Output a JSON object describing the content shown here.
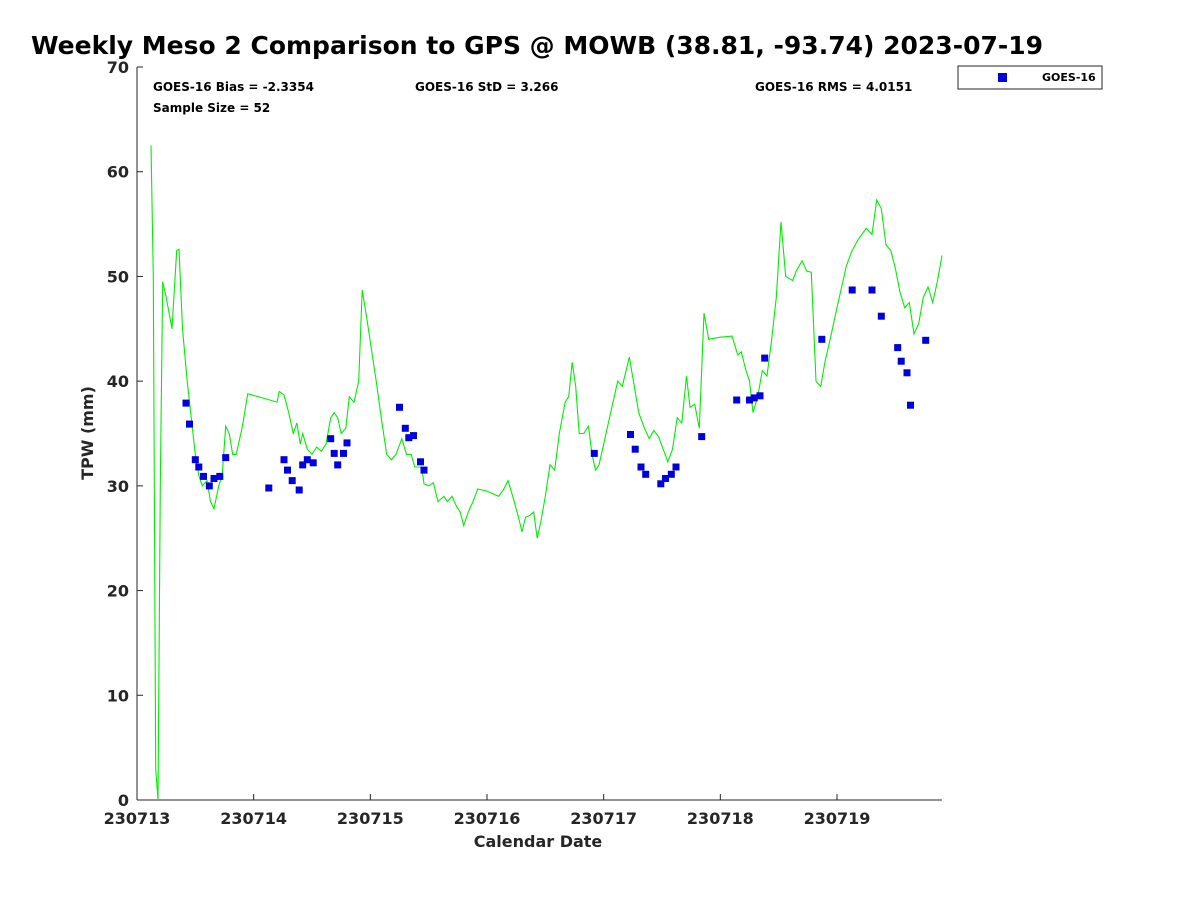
{
  "chart_data": {
    "type": "scatter",
    "title": "Weekly Meso 2 Comparison to GPS @ MOWB (38.81, -93.74) 2023-07-19",
    "xlabel": "Calendar Date",
    "ylabel": "TPW (mm)",
    "x_unit": "days",
    "xlim": [
      13.0,
      19.9
    ],
    "ylim": [
      0,
      70
    ],
    "x_ticks": [
      {
        "value": 13,
        "label": "230713"
      },
      {
        "value": 14,
        "label": "230714"
      },
      {
        "value": 15,
        "label": "230715"
      },
      {
        "value": 16,
        "label": "230716"
      },
      {
        "value": 17,
        "label": "230717"
      },
      {
        "value": 18,
        "label": "230718"
      },
      {
        "value": 19,
        "label": "230719"
      }
    ],
    "y_ticks": [
      0,
      10,
      20,
      30,
      40,
      50,
      60,
      70
    ],
    "stats": {
      "bias": "GOES-16 Bias = -2.3354",
      "std": "GOES-16 StD = 3.266",
      "rms": "GOES-16 RMS = 4.0151",
      "sample": "Sample Size = 52"
    },
    "legend": {
      "position": "top-right, outside plot",
      "entries": [
        "GOES-16"
      ]
    },
    "series": [
      {
        "name": "GOES-16",
        "style": "square markers",
        "color": "#0000dd",
        "points": [
          [
            13.42,
            37.9
          ],
          [
            13.45,
            35.9
          ],
          [
            13.5,
            32.5
          ],
          [
            13.53,
            31.8
          ],
          [
            13.57,
            30.9
          ],
          [
            13.62,
            30.0
          ],
          [
            13.66,
            30.7
          ],
          [
            13.71,
            30.9
          ],
          [
            13.76,
            32.7
          ],
          [
            14.13,
            29.8
          ],
          [
            14.26,
            32.5
          ],
          [
            14.29,
            31.5
          ],
          [
            14.33,
            30.5
          ],
          [
            14.39,
            29.6
          ],
          [
            14.42,
            32.0
          ],
          [
            14.46,
            32.5
          ],
          [
            14.51,
            32.2
          ],
          [
            14.66,
            34.5
          ],
          [
            14.69,
            33.1
          ],
          [
            14.72,
            32.0
          ],
          [
            14.77,
            33.1
          ],
          [
            14.8,
            34.1
          ],
          [
            15.25,
            37.5
          ],
          [
            15.3,
            35.5
          ],
          [
            15.33,
            34.6
          ],
          [
            15.37,
            34.8
          ],
          [
            15.43,
            32.3
          ],
          [
            15.46,
            31.5
          ],
          [
            16.92,
            33.1
          ],
          [
            17.23,
            34.9
          ],
          [
            17.27,
            33.5
          ],
          [
            17.32,
            31.8
          ],
          [
            17.36,
            31.1
          ],
          [
            17.49,
            30.2
          ],
          [
            17.53,
            30.7
          ],
          [
            17.58,
            31.1
          ],
          [
            17.62,
            31.8
          ],
          [
            17.84,
            34.7
          ],
          [
            18.14,
            38.2
          ],
          [
            18.25,
            38.2
          ],
          [
            18.29,
            38.4
          ],
          [
            18.34,
            38.6
          ],
          [
            18.38,
            42.2
          ],
          [
            18.87,
            44.0
          ],
          [
            19.13,
            48.7
          ],
          [
            19.3,
            48.7
          ],
          [
            19.38,
            46.2
          ],
          [
            19.52,
            43.2
          ],
          [
            19.55,
            41.9
          ],
          [
            19.6,
            40.8
          ],
          [
            19.63,
            37.7
          ],
          [
            19.76,
            43.9
          ]
        ]
      },
      {
        "name": "GPS",
        "style": "line",
        "color": "#00ee00",
        "points": [
          [
            13.12,
            62.5
          ],
          [
            13.14,
            50.0
          ],
          [
            13.16,
            3.0
          ],
          [
            13.18,
            0.0
          ],
          [
            13.2,
            30.0
          ],
          [
            13.22,
            49.5
          ],
          [
            13.25,
            48.0
          ],
          [
            13.3,
            45.0
          ],
          [
            13.34,
            52.5
          ],
          [
            13.36,
            52.6
          ],
          [
            13.39,
            45.0
          ],
          [
            13.43,
            40.0
          ],
          [
            13.47,
            36.0
          ],
          [
            13.5,
            33.0
          ],
          [
            13.53,
            31.0
          ],
          [
            13.56,
            30.0
          ],
          [
            13.6,
            30.5
          ],
          [
            13.63,
            28.5
          ],
          [
            13.66,
            27.8
          ],
          [
            13.7,
            30.0
          ],
          [
            13.73,
            31.0
          ],
          [
            13.76,
            35.7
          ],
          [
            13.79,
            35.0
          ],
          [
            13.82,
            33.0
          ],
          [
            13.85,
            33.0
          ],
          [
            13.9,
            35.5
          ],
          [
            13.95,
            38.8
          ],
          [
            14.2,
            38.0
          ],
          [
            14.22,
            39.0
          ],
          [
            14.26,
            38.7
          ],
          [
            14.3,
            37.0
          ],
          [
            14.34,
            35.0
          ],
          [
            14.37,
            36.0
          ],
          [
            14.4,
            34.0
          ],
          [
            14.42,
            35.0
          ],
          [
            14.46,
            33.5
          ],
          [
            14.5,
            33.0
          ],
          [
            14.54,
            33.7
          ],
          [
            14.58,
            33.3
          ],
          [
            14.62,
            34.0
          ],
          [
            14.66,
            36.5
          ],
          [
            14.69,
            37.0
          ],
          [
            14.72,
            36.5
          ],
          [
            14.75,
            35.0
          ],
          [
            14.79,
            35.5
          ],
          [
            14.82,
            38.5
          ],
          [
            14.86,
            38.0
          ],
          [
            14.9,
            40.0
          ],
          [
            14.93,
            48.7
          ],
          [
            14.97,
            46.0
          ],
          [
            15.05,
            40.0
          ],
          [
            15.1,
            36.0
          ],
          [
            15.14,
            33.0
          ],
          [
            15.18,
            32.5
          ],
          [
            15.22,
            33.0
          ],
          [
            15.27,
            34.5
          ],
          [
            15.31,
            33.0
          ],
          [
            15.35,
            33.0
          ],
          [
            15.38,
            31.8
          ],
          [
            15.44,
            31.8
          ],
          [
            15.46,
            30.2
          ],
          [
            15.5,
            30.0
          ],
          [
            15.54,
            30.3
          ],
          [
            15.58,
            28.5
          ],
          [
            15.63,
            29.0
          ],
          [
            15.66,
            28.5
          ],
          [
            15.7,
            29.0
          ],
          [
            15.74,
            28.0
          ],
          [
            15.77,
            27.5
          ],
          [
            15.8,
            26.2
          ],
          [
            15.84,
            27.5
          ],
          [
            15.88,
            28.5
          ],
          [
            15.92,
            29.7
          ],
          [
            16.0,
            29.5
          ],
          [
            16.1,
            29.0
          ],
          [
            16.14,
            29.6
          ],
          [
            16.18,
            30.5
          ],
          [
            16.22,
            29.0
          ],
          [
            16.27,
            27.0
          ],
          [
            16.3,
            25.6
          ],
          [
            16.33,
            27.0
          ],
          [
            16.37,
            27.2
          ],
          [
            16.4,
            27.5
          ],
          [
            16.43,
            25.0
          ],
          [
            16.46,
            26.5
          ],
          [
            16.5,
            29.0
          ],
          [
            16.54,
            32.0
          ],
          [
            16.58,
            31.5
          ],
          [
            16.62,
            35.0
          ],
          [
            16.67,
            38.0
          ],
          [
            16.7,
            38.5
          ],
          [
            16.73,
            41.8
          ],
          [
            16.76,
            39.5
          ],
          [
            16.79,
            35.0
          ],
          [
            16.83,
            35.0
          ],
          [
            16.87,
            35.7
          ],
          [
            16.9,
            33.0
          ],
          [
            16.93,
            31.5
          ],
          [
            16.96,
            32.0
          ],
          [
            17.0,
            34.0
          ],
          [
            17.08,
            38.0
          ],
          [
            17.12,
            40.0
          ],
          [
            17.16,
            39.5
          ],
          [
            17.22,
            42.3
          ],
          [
            17.27,
            39.0
          ],
          [
            17.3,
            37.0
          ],
          [
            17.35,
            35.5
          ],
          [
            17.39,
            34.5
          ],
          [
            17.43,
            35.3
          ],
          [
            17.47,
            34.7
          ],
          [
            17.51,
            33.5
          ],
          [
            17.55,
            32.3
          ],
          [
            17.59,
            33.5
          ],
          [
            17.63,
            36.5
          ],
          [
            17.67,
            36.0
          ],
          [
            17.71,
            40.5
          ],
          [
            17.74,
            37.5
          ],
          [
            17.78,
            37.8
          ],
          [
            17.82,
            35.5
          ],
          [
            17.86,
            46.5
          ],
          [
            17.9,
            44.0
          ],
          [
            18.0,
            44.2
          ],
          [
            18.1,
            44.3
          ],
          [
            18.15,
            42.5
          ],
          [
            18.18,
            42.8
          ],
          [
            18.22,
            41.0
          ],
          [
            18.25,
            40.0
          ],
          [
            18.28,
            37.0
          ],
          [
            18.32,
            38.5
          ],
          [
            18.36,
            41.0
          ],
          [
            18.4,
            40.5
          ],
          [
            18.44,
            44.0
          ],
          [
            18.48,
            48.0
          ],
          [
            18.52,
            55.2
          ],
          [
            18.56,
            50.0
          ],
          [
            18.62,
            49.6
          ],
          [
            18.65,
            50.5
          ],
          [
            18.7,
            51.5
          ],
          [
            18.74,
            50.5
          ],
          [
            18.78,
            50.4
          ],
          [
            18.82,
            40.0
          ],
          [
            18.86,
            39.5
          ],
          [
            18.9,
            42.0
          ],
          [
            18.93,
            43.4
          ],
          [
            19.0,
            47.0
          ],
          [
            19.08,
            51.0
          ],
          [
            19.13,
            52.5
          ],
          [
            19.18,
            53.5
          ],
          [
            19.25,
            54.6
          ],
          [
            19.3,
            54.0
          ],
          [
            19.34,
            57.3
          ],
          [
            19.38,
            56.5
          ],
          [
            19.42,
            53.0
          ],
          [
            19.46,
            52.5
          ],
          [
            19.5,
            50.8
          ],
          [
            19.54,
            48.5
          ],
          [
            19.58,
            47.0
          ],
          [
            19.62,
            47.5
          ],
          [
            19.66,
            44.5
          ],
          [
            19.7,
            45.5
          ],
          [
            19.74,
            48.0
          ],
          [
            19.78,
            49.0
          ],
          [
            19.82,
            47.5
          ],
          [
            19.86,
            49.5
          ],
          [
            19.9,
            52.0
          ]
        ]
      }
    ]
  }
}
